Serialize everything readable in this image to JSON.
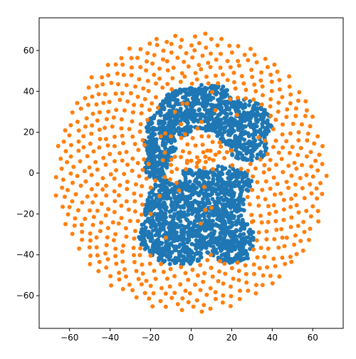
{
  "chart_data": {
    "type": "scatter",
    "title": "",
    "xlabel": "",
    "ylabel": "",
    "xlim": [
      -75,
      75
    ],
    "ylim": [
      -76,
      76
    ],
    "x_ticks": [
      -60,
      -40,
      -20,
      0,
      20,
      40,
      60
    ],
    "y_ticks": [
      -60,
      -40,
      -20,
      0,
      20,
      40,
      60
    ],
    "x_tick_labels": [
      "−60",
      "−40",
      "−20",
      "0",
      "20",
      "40",
      "60"
    ],
    "y_tick_labels": [
      "−60",
      "−40",
      "−20",
      "0",
      "20",
      "40",
      "60"
    ],
    "grid": false,
    "legend": "none",
    "series": [
      {
        "color": "#1f77b4",
        "description": "dense blue cluster",
        "regions": [
          {
            "cx": 0,
            "cy": 30,
            "rx": 16,
            "ry": 12
          },
          {
            "cx": 25,
            "cy": 24,
            "rx": 15,
            "ry": 12
          },
          {
            "cx": 10,
            "cy": 38,
            "rx": 10,
            "ry": 6
          },
          {
            "cx": -15,
            "cy": 17,
            "rx": 8,
            "ry": 13
          },
          {
            "cx": -17,
            "cy": 3,
            "rx": 6,
            "ry": 6
          },
          {
            "cx": 28,
            "cy": 12,
            "rx": 10,
            "ry": 6
          },
          {
            "cx": 2,
            "cy": -18,
            "rx": 25,
            "ry": 20
          },
          {
            "cx": -8,
            "cy": -30,
            "rx": 18,
            "ry": 13
          },
          {
            "cx": 18,
            "cy": -32,
            "rx": 14,
            "ry": 10
          },
          {
            "cx": 15,
            "cy": -5,
            "rx": 15,
            "ry": 9
          },
          {
            "cx": -6,
            "cy": -40,
            "rx": 12,
            "ry": 5
          },
          {
            "cx": 20,
            "cy": -40,
            "rx": 9,
            "ry": 4
          }
        ],
        "holes": [
          {
            "cx": 4,
            "cy": 16,
            "rx": 5,
            "ry": 6
          },
          {
            "cx": -9,
            "cy": 0,
            "rx": 4,
            "ry": 4
          },
          {
            "cx": 7,
            "cy": 4,
            "rx": 6,
            "ry": 3
          }
        ]
      },
      {
        "color": "#ff7f0e",
        "description": "sparse orange points on an approximately circular disc",
        "disc_radius": 67,
        "approx_points": 850,
        "extra_points": [
          [
            -15,
            18
          ],
          [
            -10,
            18
          ],
          [
            -13,
            10
          ],
          [
            -8,
            8
          ],
          [
            -10,
            4
          ],
          [
            -13,
            -2
          ],
          [
            -2,
            5
          ],
          [
            0,
            6
          ],
          [
            4,
            6
          ],
          [
            7,
            8
          ],
          [
            12,
            9
          ],
          [
            14,
            15
          ],
          [
            8,
            11
          ],
          [
            20,
            11
          ],
          [
            -2,
            34
          ],
          [
            7,
            -18
          ],
          [
            10,
            -17
          ],
          [
            -5,
            24
          ],
          [
            -3,
            19
          ],
          [
            3,
            5
          ],
          [
            9,
            7
          ],
          [
            -20,
            -20
          ],
          [
            30,
            -24
          ],
          [
            -8,
            30
          ]
        ]
      }
    ]
  }
}
